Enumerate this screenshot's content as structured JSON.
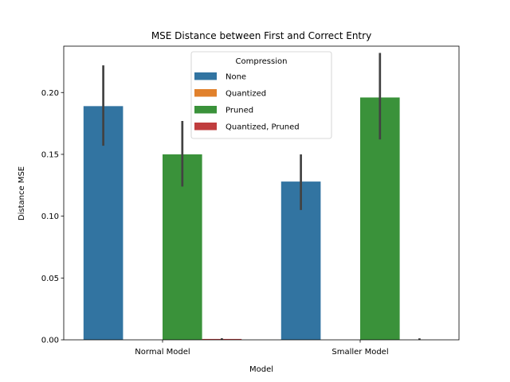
{
  "chart_data": {
    "type": "bar",
    "title": "MSE Distance between First and Correct Entry",
    "xlabel": "Model",
    "ylabel": "Distance MSE",
    "categories": [
      "Normal Model",
      "Smaller Model"
    ],
    "ylim": [
      0,
      0.2375
    ],
    "yticks": [
      0.0,
      0.05,
      0.1,
      0.15,
      0.2
    ],
    "ytick_labels": [
      "0.00",
      "0.05",
      "0.10",
      "0.15",
      "0.20"
    ],
    "grid": false,
    "legend": {
      "title": "Compression",
      "placement": "upper-center"
    },
    "series": [
      {
        "name": "None",
        "color": "#3274a1",
        "values": [
          0.189,
          0.128
        ],
        "ci_low": [
          0.157,
          0.105
        ],
        "ci_high": [
          0.222,
          0.15
        ]
      },
      {
        "name": "Quantized",
        "color": "#e1812c",
        "values": [
          0.0,
          0.0
        ],
        "ci_low": [
          0.0,
          0.0
        ],
        "ci_high": [
          0.0,
          0.0
        ]
      },
      {
        "name": "Pruned",
        "color": "#3a923a",
        "values": [
          0.15,
          0.196
        ],
        "ci_low": [
          0.124,
          0.162
        ],
        "ci_high": [
          0.177,
          0.232
        ]
      },
      {
        "name": "Quantized, Pruned",
        "color": "#c03d3e",
        "values": [
          0.0007,
          0.0
        ],
        "ci_low": [
          0.0,
          0.0
        ],
        "ci_high": [
          0.0013,
          0.0012
        ]
      }
    ]
  }
}
